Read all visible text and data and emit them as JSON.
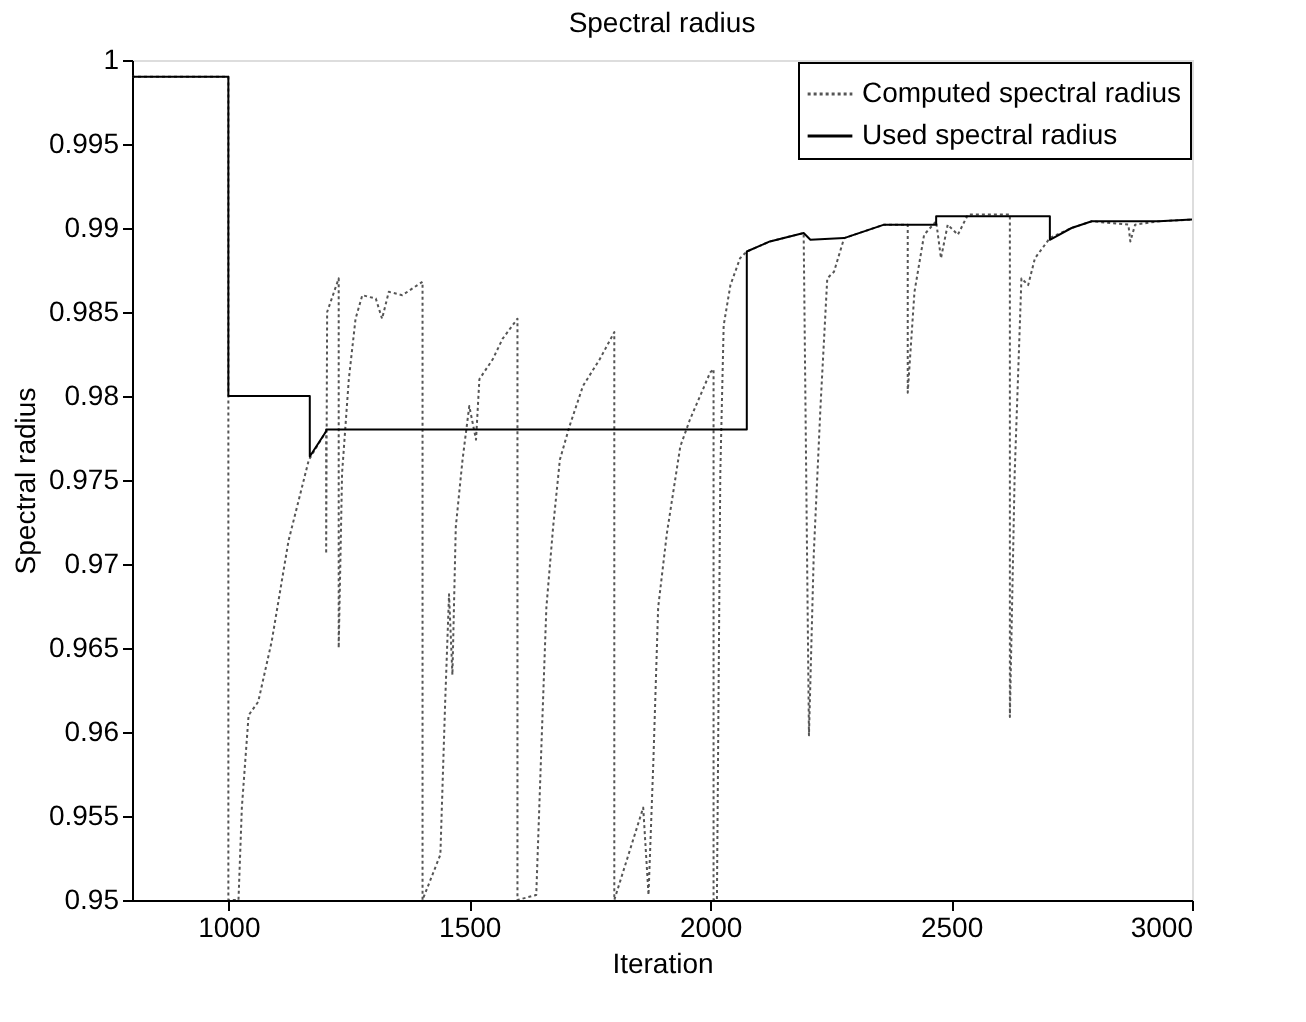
{
  "chart_data": {
    "type": "line",
    "title": "Spectral radius",
    "xlabel": "Iteration",
    "ylabel": "Spectral radius",
    "xlim": [
      800,
      3000
    ],
    "xticks": [
      1000,
      1500,
      2000,
      2500,
      3000
    ],
    "ylim": [
      0.95,
      1
    ],
    "yticks": [
      0.95,
      0.955,
      0.96,
      0.965,
      0.97,
      0.975,
      0.98,
      0.985,
      0.99,
      0.995,
      1
    ],
    "grid": false,
    "legend": "top right",
    "marker": "none",
    "series": [
      {
        "name": "Computed spectral radius",
        "color": "#555555",
        "line_style": "dotted",
        "x": [
          800,
          1000,
          1000,
          1021,
          1028,
          1042,
          1062,
          1090,
          1125,
          1167,
          1203,
          1203,
          1205,
          1229,
          1229,
          1236,
          1250,
          1264,
          1278,
          1306,
          1319,
          1333,
          1361,
          1403,
          1403,
          1440,
          1450,
          1458,
          1465,
          1472,
          1486,
          1500,
          1514,
          1521,
          1549,
          1569,
          1600,
          1600,
          1639,
          1650,
          1660,
          1674,
          1688,
          1708,
          1736,
          1771,
          1801,
          1801,
          1861,
          1872,
          1882,
          1892,
          1910,
          1938,
          1958,
          2000,
          2007,
          2007,
          2014,
          2021,
          2028,
          2042,
          2062,
          2076,
          2124,
          2194,
          2205,
          2215,
          2229,
          2243,
          2257,
          2278,
          2361,
          2410,
          2410,
          2424,
          2444,
          2469,
          2479,
          2493,
          2514,
          2535,
          2622,
          2622,
          2632,
          2646,
          2660,
          2674,
          2705,
          2750,
          2792,
          2868,
          2872,
          2882,
          2931,
          3000
        ],
        "values": [
          0.999,
          0.999,
          0.95,
          0.95,
          0.9555,
          0.961,
          0.9618,
          0.9654,
          0.9714,
          0.9762,
          0.9779,
          0.9706,
          0.985,
          0.987,
          0.965,
          0.9754,
          0.981,
          0.9846,
          0.986,
          0.9858,
          0.9846,
          0.9862,
          0.986,
          0.9868,
          0.95,
          0.9527,
          0.9618,
          0.9682,
          0.9634,
          0.9722,
          0.9762,
          0.9794,
          0.9774,
          0.981,
          0.9822,
          0.9834,
          0.9846,
          0.95,
          0.9503,
          0.9594,
          0.9674,
          0.9722,
          0.9762,
          0.9782,
          0.9806,
          0.9822,
          0.9838,
          0.95,
          0.9555,
          0.9503,
          0.9582,
          0.9674,
          0.9718,
          0.977,
          0.9786,
          0.9814,
          0.9816,
          0.95,
          0.95,
          0.9754,
          0.9842,
          0.9866,
          0.9882,
          0.9886,
          0.9892,
          0.9897,
          0.9598,
          0.9706,
          0.9794,
          0.987,
          0.9874,
          0.9894,
          0.9902,
          0.9902,
          0.9802,
          0.9862,
          0.9896,
          0.9904,
          0.9882,
          0.9902,
          0.9896,
          0.9908,
          0.9908,
          0.9609,
          0.9754,
          0.987,
          0.9866,
          0.9882,
          0.9894,
          0.99,
          0.9904,
          0.9902,
          0.9892,
          0.9902,
          0.9904,
          0.9905
        ]
      },
      {
        "name": "Used spectral radius",
        "color": "#000000",
        "line_style": "solid",
        "x": [
          800,
          1000,
          1000,
          1169,
          1169,
          1203,
          1203,
          2076,
          2076,
          2124,
          2194,
          2208,
          2278,
          2361,
          2469,
          2469,
          2705,
          2705,
          2750,
          2792,
          2931,
          3000
        ],
        "values": [
          0.999,
          0.999,
          0.98,
          0.98,
          0.9764,
          0.9779,
          0.978,
          0.978,
          0.9886,
          0.9892,
          0.9897,
          0.9893,
          0.9894,
          0.9902,
          0.9902,
          0.9907,
          0.9907,
          0.9893,
          0.99,
          0.9904,
          0.9904,
          0.9905
        ]
      }
    ]
  }
}
